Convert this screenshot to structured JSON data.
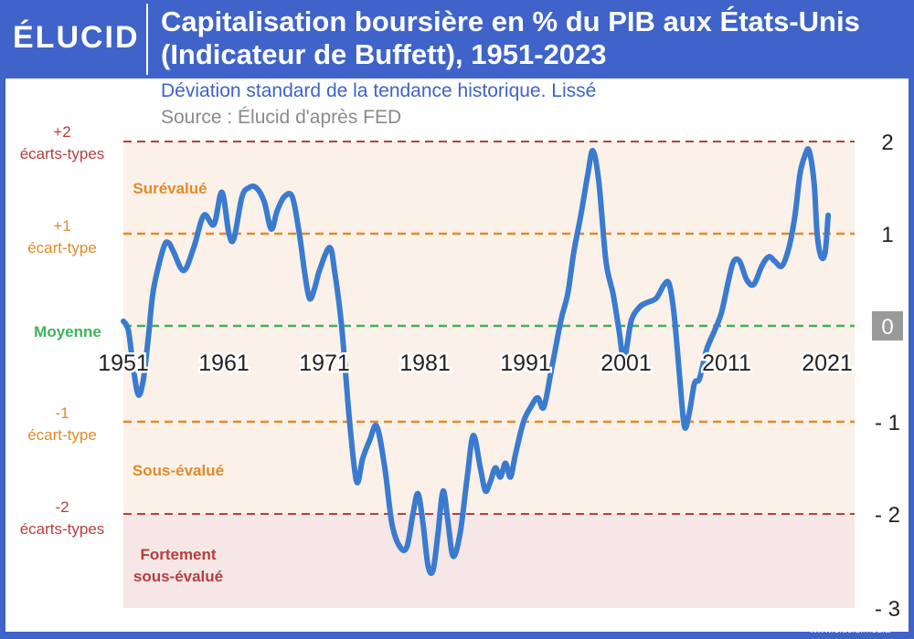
{
  "header": {
    "logo_text": "ÉLUCID",
    "title": "Capitalisation boursière en % du PIB aux États-Unis (Indicateur de Buffett), 1951-2023",
    "subtitle": "Déviation standard de la tendance historique. Lissé",
    "source": "Source : Élucid d'après FED"
  },
  "footer": {
    "site": "www.elucid.media"
  },
  "colors": {
    "frame": "#3f63c9",
    "line": "#3a7bd0",
    "overvalued_zone": "#fcf1e8",
    "strongly_undervalued_zone": "#f6e6e6",
    "dark_red": "#b73e3e",
    "orange": "#e08a2c",
    "green": "#3cb45a",
    "zero_badge": "#9a9a9a"
  },
  "band_labels": {
    "plus2_a": "+2",
    "plus2_b": "écarts-types",
    "plus1_a": "+1",
    "plus1_b": "écart-type",
    "mean": "Moyenne",
    "minus1_a": "-1",
    "minus1_b": "écart-type",
    "minus2_a": "-2",
    "minus2_b": "écarts-types"
  },
  "zone_labels": {
    "overvalued": "Surévalué",
    "undervalued": "Sous-évalué",
    "strongly_a": "Fortement",
    "strongly_b": "sous-évalué"
  },
  "chart_data": {
    "type": "line",
    "xlabel": "",
    "ylabel": "",
    "xlim": [
      1951,
      2023
    ],
    "ylim": [
      -3,
      2
    ],
    "x_ticks": [
      "1951",
      "1961",
      "1971",
      "1981",
      "1991",
      "2001",
      "2011",
      "2021"
    ],
    "y_ticks": [
      "2",
      "1",
      "0",
      "- 1",
      "- 2",
      "- 3"
    ],
    "y_tick_values": [
      2,
      1,
      0,
      -1,
      -2,
      -3
    ],
    "reference_lines": [
      2,
      1,
      0,
      -1,
      -2
    ],
    "series": [
      {
        "points": [
          [
            1951,
            0.05
          ],
          [
            1951.5,
            -0.05
          ],
          [
            1952,
            -0.45
          ],
          [
            1952.5,
            -0.72
          ],
          [
            1953,
            -0.55
          ],
          [
            1953.5,
            -0.1
          ],
          [
            1954,
            0.4
          ],
          [
            1955,
            0.85
          ],
          [
            1955.5,
            0.9
          ],
          [
            1956,
            0.8
          ],
          [
            1957,
            0.6
          ],
          [
            1958,
            0.85
          ],
          [
            1959,
            1.2
          ],
          [
            1960,
            1.1
          ],
          [
            1960.8,
            1.45
          ],
          [
            1961.5,
            1.0
          ],
          [
            1962,
            0.95
          ],
          [
            1962.8,
            1.4
          ],
          [
            1963.5,
            1.5
          ],
          [
            1964.2,
            1.5
          ],
          [
            1965,
            1.35
          ],
          [
            1965.7,
            1.05
          ],
          [
            1966.3,
            1.25
          ],
          [
            1967,
            1.4
          ],
          [
            1967.8,
            1.4
          ],
          [
            1968.5,
            1.0
          ],
          [
            1969,
            0.6
          ],
          [
            1969.5,
            0.3
          ],
          [
            1970,
            0.4
          ],
          [
            1970.5,
            0.6
          ],
          [
            1971.5,
            0.85
          ],
          [
            1972,
            0.6
          ],
          [
            1972.7,
            0.0
          ],
          [
            1973.5,
            -1.0
          ],
          [
            1974.2,
            -1.65
          ],
          [
            1974.8,
            -1.4
          ],
          [
            1975.5,
            -1.2
          ],
          [
            1976.2,
            -1.05
          ],
          [
            1977,
            -1.5
          ],
          [
            1977.7,
            -2.1
          ],
          [
            1978.5,
            -2.35
          ],
          [
            1979.2,
            -2.35
          ],
          [
            1979.8,
            -2.0
          ],
          [
            1980.3,
            -1.78
          ],
          [
            1980.8,
            -2.1
          ],
          [
            1981.3,
            -2.55
          ],
          [
            1981.8,
            -2.6
          ],
          [
            1982.3,
            -2.2
          ],
          [
            1982.8,
            -1.75
          ],
          [
            1983.3,
            -2.1
          ],
          [
            1983.8,
            -2.45
          ],
          [
            1984.5,
            -2.2
          ],
          [
            1985.2,
            -1.6
          ],
          [
            1985.8,
            -1.15
          ],
          [
            1986.5,
            -1.5
          ],
          [
            1987,
            -1.75
          ],
          [
            1987.5,
            -1.65
          ],
          [
            1988,
            -1.5
          ],
          [
            1988.5,
            -1.6
          ],
          [
            1989,
            -1.45
          ],
          [
            1989.5,
            -1.6
          ],
          [
            1990,
            -1.35
          ],
          [
            1990.8,
            -1.0
          ],
          [
            1991.5,
            -0.85
          ],
          [
            1992.2,
            -0.75
          ],
          [
            1992.8,
            -0.85
          ],
          [
            1993.5,
            -0.5
          ],
          [
            1994.5,
            0.05
          ],
          [
            1995.2,
            0.35
          ],
          [
            1995.8,
            0.8
          ],
          [
            1996.5,
            1.2
          ],
          [
            1997.2,
            1.65
          ],
          [
            1997.7,
            1.9
          ],
          [
            1998.3,
            1.55
          ],
          [
            1999,
            0.7
          ],
          [
            1999.7,
            0.35
          ],
          [
            2000.3,
            -0.05
          ],
          [
            2000.8,
            -0.35
          ],
          [
            2001.5,
            0.05
          ],
          [
            2002.3,
            0.2
          ],
          [
            2003,
            0.25
          ],
          [
            2004,
            0.3
          ],
          [
            2004.8,
            0.45
          ],
          [
            2005.3,
            0.45
          ],
          [
            2005.8,
            0.1
          ],
          [
            2006.3,
            -0.5
          ],
          [
            2006.8,
            -1.05
          ],
          [
            2007.3,
            -0.9
          ],
          [
            2007.8,
            -0.6
          ],
          [
            2008.3,
            -0.55
          ],
          [
            2009,
            -0.25
          ],
          [
            2009.8,
            -0.05
          ],
          [
            2010.5,
            0.15
          ],
          [
            2011.2,
            0.5
          ],
          [
            2011.7,
            0.7
          ],
          [
            2012.3,
            0.7
          ],
          [
            2013,
            0.5
          ],
          [
            2013.7,
            0.45
          ],
          [
            2014.5,
            0.65
          ],
          [
            2015.2,
            0.75
          ],
          [
            2015.8,
            0.7
          ],
          [
            2016.5,
            0.65
          ],
          [
            2017.2,
            0.85
          ],
          [
            2017.8,
            1.2
          ],
          [
            2018.3,
            1.65
          ],
          [
            2018.8,
            1.85
          ],
          [
            2019.2,
            1.9
          ],
          [
            2019.7,
            1.55
          ],
          [
            2020,
            1.0
          ],
          [
            2020.4,
            0.75
          ],
          [
            2020.8,
            0.8
          ],
          [
            2021.1,
            1.2
          ]
        ]
      }
    ]
  }
}
